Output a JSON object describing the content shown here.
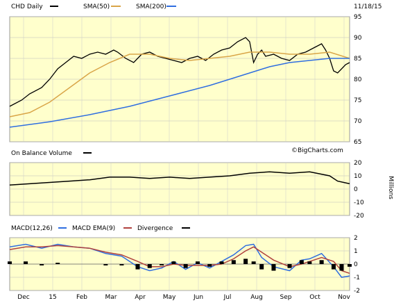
{
  "chart_data": [
    {
      "type": "line",
      "panel": "price",
      "title": "CHD Daily",
      "date": "11/18/15",
      "ylim": [
        65,
        95
      ],
      "yticks": [
        95,
        90,
        85,
        80,
        75,
        70,
        65
      ],
      "grid": true,
      "legend": [
        {
          "name": "CHD Daily",
          "color": "#000000"
        },
        {
          "name": "SMA(50)",
          "color": "#d9a548"
        },
        {
          "name": "SMA(200)",
          "color": "#2f6ee0"
        }
      ],
      "watermark": "©BigCharts.com",
      "x_months": [
        "Dec",
        "15",
        "Feb",
        "Mar",
        "Apr",
        "May",
        "Jun",
        "Jul",
        "Aug",
        "Sep",
        "Oct",
        "Nov"
      ],
      "series": [
        {
          "name": "CHD Daily",
          "color": "#000000",
          "points": [
            [
              0,
              73.5
            ],
            [
              3,
              75
            ],
            [
              5,
              76.5
            ],
            [
              8,
              78
            ],
            [
              10,
              80
            ],
            [
              12,
              82.5
            ],
            [
              14,
              84
            ],
            [
              16,
              85.5
            ],
            [
              18,
              85
            ],
            [
              20,
              86
            ],
            [
              22,
              86.5
            ],
            [
              24,
              86
            ],
            [
              26,
              87
            ],
            [
              27,
              86.5
            ],
            [
              29,
              85
            ],
            [
              31,
              84
            ],
            [
              33,
              86
            ],
            [
              35,
              86.5
            ],
            [
              37,
              85.5
            ],
            [
              39,
              85
            ],
            [
              41,
              84.5
            ],
            [
              43,
              84
            ],
            [
              45,
              85
            ],
            [
              47,
              85.5
            ],
            [
              49,
              84.5
            ],
            [
              51,
              86
            ],
            [
              53,
              87
            ],
            [
              55,
              87.5
            ],
            [
              57,
              89
            ],
            [
              59,
              90
            ],
            [
              60,
              89
            ],
            [
              61,
              84
            ],
            [
              62,
              86
            ],
            [
              63,
              87
            ],
            [
              64,
              85.5
            ],
            [
              66,
              86
            ],
            [
              68,
              85
            ],
            [
              70,
              84.5
            ],
            [
              72,
              86
            ],
            [
              74,
              86.5
            ],
            [
              76,
              87.5
            ],
            [
              77,
              88
            ],
            [
              78,
              88.5
            ],
            [
              79,
              87
            ],
            [
              80,
              85
            ],
            [
              81,
              82
            ],
            [
              82,
              81.5
            ],
            [
              83,
              82.5
            ],
            [
              84,
              83.5
            ],
            [
              85,
              84
            ]
          ]
        },
        {
          "name": "SMA(50)",
          "color": "#d9a548",
          "points": [
            [
              0,
              71
            ],
            [
              5,
              72
            ],
            [
              10,
              74.5
            ],
            [
              15,
              78
            ],
            [
              20,
              81.5
            ],
            [
              25,
              84
            ],
            [
              30,
              86
            ],
            [
              35,
              86
            ],
            [
              40,
              85
            ],
            [
              45,
              84.5
            ],
            [
              50,
              85
            ],
            [
              55,
              85.5
            ],
            [
              60,
              86.5
            ],
            [
              65,
              86.5
            ],
            [
              70,
              86
            ],
            [
              75,
              86
            ],
            [
              80,
              86.5
            ],
            [
              85,
              85
            ]
          ]
        },
        {
          "name": "SMA(200)",
          "color": "#2f6ee0",
          "points": [
            [
              0,
              68.5
            ],
            [
              10,
              69.8
            ],
            [
              20,
              71.5
            ],
            [
              30,
              73.5
            ],
            [
              40,
              76
            ],
            [
              50,
              78.5
            ],
            [
              55,
              80
            ],
            [
              60,
              81.5
            ],
            [
              65,
              83
            ],
            [
              70,
              84
            ],
            [
              75,
              84.5
            ],
            [
              80,
              85
            ],
            [
              85,
              85
            ]
          ]
        }
      ]
    },
    {
      "type": "line",
      "panel": "obv",
      "title": "On Balance Volume",
      "ylabel": "Millions",
      "ylim": [
        -20,
        20
      ],
      "yticks": [
        20,
        10,
        0,
        -10,
        -20
      ],
      "series": [
        {
          "name": "On Balance Volume",
          "color": "#000000",
          "points": [
            [
              0,
              3
            ],
            [
              5,
              4
            ],
            [
              10,
              5
            ],
            [
              15,
              6
            ],
            [
              20,
              7
            ],
            [
              25,
              9
            ],
            [
              30,
              9
            ],
            [
              35,
              8
            ],
            [
              40,
              9
            ],
            [
              45,
              8
            ],
            [
              50,
              9
            ],
            [
              55,
              10
            ],
            [
              60,
              12
            ],
            [
              65,
              13
            ],
            [
              70,
              12
            ],
            [
              75,
              13
            ],
            [
              80,
              10
            ],
            [
              82,
              6
            ],
            [
              85,
              4
            ]
          ]
        }
      ]
    },
    {
      "type": "line",
      "panel": "macd",
      "title": "MACD(12,26)",
      "ylim": [
        -2,
        2
      ],
      "yticks": [
        2,
        1,
        0,
        -1,
        -2
      ],
      "legend": [
        {
          "name": "MACD(12,26)",
          "color": "#2f6ee0"
        },
        {
          "name": "MACD EMA(9)",
          "color": "#b0413e"
        },
        {
          "name": "Divergence",
          "color": "#000000"
        }
      ],
      "series": [
        {
          "name": "MACD(12,26)",
          "color": "#2f6ee0",
          "points": [
            [
              0,
              1.3
            ],
            [
              4,
              1.5
            ],
            [
              8,
              1.2
            ],
            [
              12,
              1.5
            ],
            [
              16,
              1.3
            ],
            [
              20,
              1.2
            ],
            [
              24,
              0.8
            ],
            [
              28,
              0.6
            ],
            [
              32,
              -0.2
            ],
            [
              35,
              -0.5
            ],
            [
              38,
              -0.3
            ],
            [
              41,
              0.2
            ],
            [
              44,
              -0.4
            ],
            [
              47,
              0.1
            ],
            [
              50,
              -0.3
            ],
            [
              53,
              0.2
            ],
            [
              56,
              0.7
            ],
            [
              59,
              1.4
            ],
            [
              61,
              1.5
            ],
            [
              63,
              0.5
            ],
            [
              66,
              -0.2
            ],
            [
              70,
              -0.5
            ],
            [
              73,
              0.3
            ],
            [
              75,
              0.4
            ],
            [
              78,
              0.8
            ],
            [
              81,
              -0.2
            ],
            [
              83,
              -1.0
            ],
            [
              85,
              -0.9
            ]
          ]
        },
        {
          "name": "MACD EMA(9)",
          "color": "#b0413e",
          "points": [
            [
              0,
              1.1
            ],
            [
              4,
              1.3
            ],
            [
              8,
              1.3
            ],
            [
              12,
              1.4
            ],
            [
              16,
              1.3
            ],
            [
              20,
              1.2
            ],
            [
              24,
              0.9
            ],
            [
              28,
              0.7
            ],
            [
              32,
              0.2
            ],
            [
              35,
              -0.2
            ],
            [
              38,
              -0.2
            ],
            [
              41,
              0.0
            ],
            [
              44,
              -0.1
            ],
            [
              47,
              -0.1
            ],
            [
              50,
              -0.1
            ],
            [
              53,
              0.0
            ],
            [
              56,
              0.4
            ],
            [
              59,
              1.0
            ],
            [
              61,
              1.3
            ],
            [
              63,
              0.9
            ],
            [
              66,
              0.3
            ],
            [
              70,
              -0.2
            ],
            [
              73,
              0.0
            ],
            [
              75,
              0.2
            ],
            [
              78,
              0.5
            ],
            [
              81,
              0.2
            ],
            [
              83,
              -0.5
            ],
            [
              85,
              -0.7
            ]
          ]
        },
        {
          "name": "Divergence",
          "color": "#000000",
          "points": [
            [
              0,
              0.2
            ],
            [
              4,
              0.2
            ],
            [
              8,
              -0.1
            ],
            [
              12,
              0.1
            ],
            [
              16,
              0.0
            ],
            [
              20,
              0.0
            ],
            [
              24,
              -0.1
            ],
            [
              28,
              -0.1
            ],
            [
              32,
              -0.4
            ],
            [
              35,
              -0.3
            ],
            [
              38,
              -0.1
            ],
            [
              41,
              0.2
            ],
            [
              44,
              -0.3
            ],
            [
              47,
              0.2
            ],
            [
              50,
              -0.2
            ],
            [
              53,
              0.2
            ],
            [
              56,
              0.3
            ],
            [
              59,
              0.4
            ],
            [
              61,
              0.2
            ],
            [
              63,
              -0.4
            ],
            [
              66,
              -0.5
            ],
            [
              70,
              -0.3
            ],
            [
              73,
              0.3
            ],
            [
              75,
              0.2
            ],
            [
              78,
              0.3
            ],
            [
              81,
              -0.4
            ],
            [
              83,
              -0.5
            ],
            [
              85,
              -0.2
            ]
          ]
        }
      ]
    }
  ]
}
